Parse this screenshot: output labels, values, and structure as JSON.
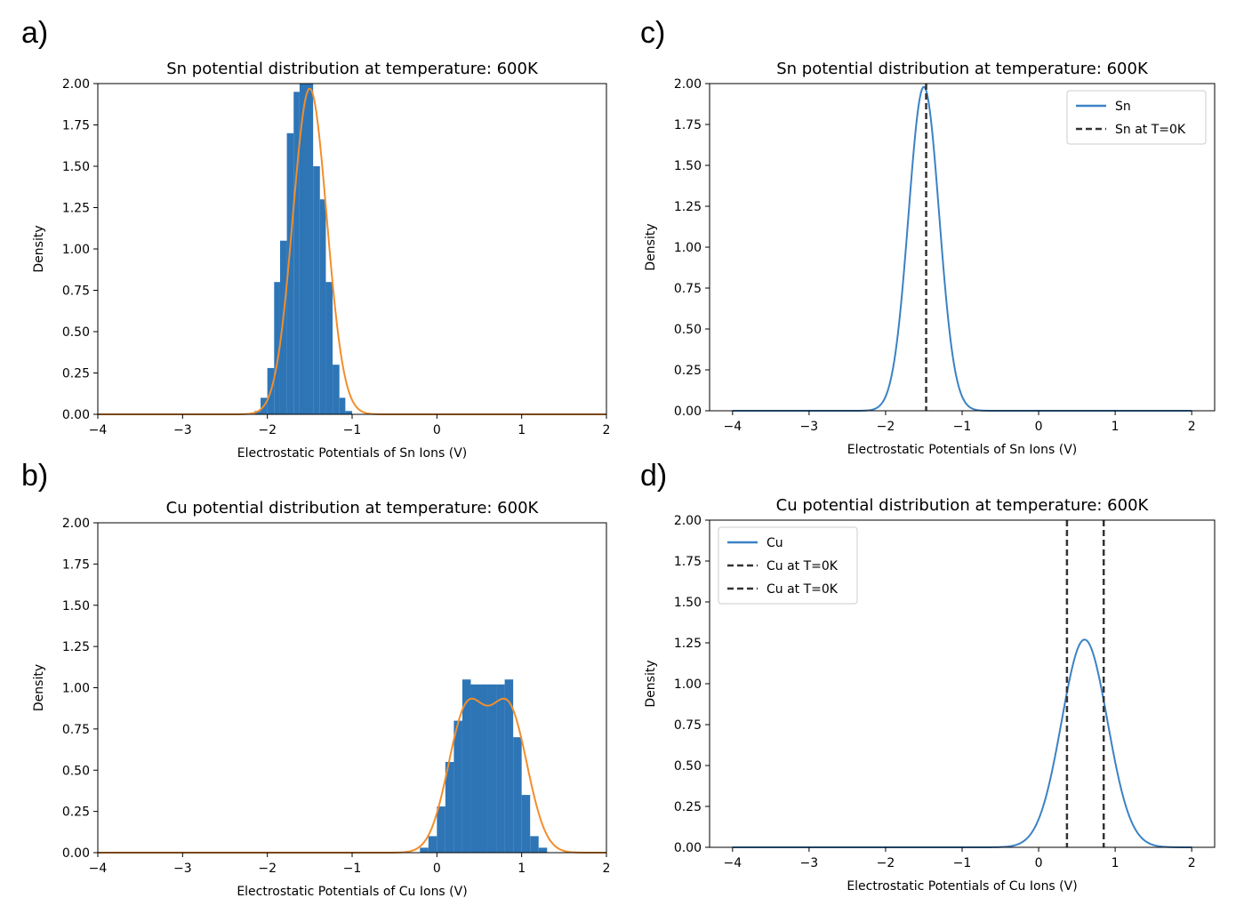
{
  "panels": [
    {
      "letter": "a)"
    },
    {
      "letter": "c)"
    },
    {
      "letter": "b)"
    },
    {
      "letter": "d)"
    }
  ],
  "chart_data": [
    {
      "id": "a",
      "type": "histogram",
      "title": "Sn potential distribution at temperature: 600K",
      "xlabel": "Electrostatic Potentials of Sn Ions (V)",
      "ylabel": "Density",
      "xlim": [
        -4,
        2
      ],
      "ylim": [
        0,
        2.0
      ],
      "xticks": [
        "−4",
        "−3",
        "−2",
        "−1",
        "0",
        "1",
        "2"
      ],
      "yticks": [
        "0.00",
        "0.25",
        "0.50",
        "0.75",
        "1.00",
        "1.25",
        "1.50",
        "1.75",
        "2.00"
      ],
      "bar_color": "#2e75b6",
      "curve_color": "#f28e2b",
      "bars": {
        "edges": [
          -2.15,
          -2.08,
          -2.0,
          -1.92,
          -1.85,
          -1.77,
          -1.69,
          -1.62,
          -1.54,
          -1.46,
          -1.38,
          -1.31,
          -1.23,
          -1.15,
          -1.08,
          -1.0
        ],
        "values": [
          0.02,
          0.1,
          0.28,
          0.8,
          1.05,
          1.7,
          1.95,
          2.05,
          2.05,
          1.5,
          1.3,
          0.8,
          0.3,
          0.1,
          0.02
        ]
      },
      "curve": {
        "type": "gaussian",
        "mean": -1.5,
        "sd": 0.2,
        "peak": 1.97
      }
    },
    {
      "id": "c",
      "type": "line",
      "title": "Sn potential distribution at temperature: 600K",
      "xlabel": "Electrostatic Potentials of Sn Ions (V)",
      "ylabel": "Density",
      "xlim": [
        -4,
        2
      ],
      "ylim": [
        0,
        2.0
      ],
      "xticks": [
        "−4",
        "−3",
        "−2",
        "−1",
        "0",
        "1",
        "2"
      ],
      "yticks": [
        "0.00",
        "0.25",
        "0.50",
        "0.75",
        "1.00",
        "1.25",
        "1.50",
        "1.75",
        "2.00"
      ],
      "curve_color": "#3b82c4",
      "curve": {
        "type": "gaussian",
        "mean": -1.5,
        "sd": 0.2,
        "peak": 1.98
      },
      "vlines": [
        -1.47
      ],
      "legend_position": "top-right",
      "legend": [
        {
          "label": "Sn",
          "style": "solid"
        },
        {
          "label": "Sn at T=0K",
          "style": "dashed"
        }
      ]
    },
    {
      "id": "b",
      "type": "histogram",
      "title": "Cu potential distribution at temperature: 600K",
      "xlabel": "Electrostatic Potentials of Cu Ions (V)",
      "ylabel": "Density",
      "xlim": [
        -4,
        2
      ],
      "ylim": [
        0,
        2.0
      ],
      "xticks": [
        "−4",
        "−3",
        "−2",
        "−1",
        "0",
        "1",
        "2"
      ],
      "yticks": [
        "0.00",
        "0.25",
        "0.50",
        "0.75",
        "1.00",
        "1.25",
        "1.50",
        "1.75",
        "2.00"
      ],
      "bar_color": "#2e75b6",
      "curve_color": "#f28e2b",
      "bars": {
        "edges": [
          -0.2,
          -0.1,
          0.0,
          0.1,
          0.2,
          0.3,
          0.4,
          0.5,
          0.6,
          0.7,
          0.8,
          0.9,
          1.0,
          1.1,
          1.2,
          1.3
        ],
        "values": [
          0.03,
          0.1,
          0.28,
          0.55,
          0.8,
          1.05,
          1.02,
          1.02,
          1.02,
          1.02,
          1.05,
          0.7,
          0.35,
          0.1,
          0.03
        ]
      },
      "curve": {
        "type": "bimodal",
        "components": [
          [
            0.35,
            0.22,
            0.85
          ],
          [
            0.85,
            0.22,
            0.85
          ]
        ]
      }
    },
    {
      "id": "d",
      "type": "line",
      "title": "Cu potential distribution at temperature: 600K",
      "xlabel": "Electrostatic Potentials of Cu Ions (V)",
      "ylabel": "Density",
      "xlim": [
        -4,
        2
      ],
      "ylim": [
        0,
        2.0
      ],
      "xticks": [
        "−4",
        "−3",
        "−2",
        "−1",
        "0",
        "1",
        "2"
      ],
      "yticks": [
        "0.00",
        "0.25",
        "0.50",
        "0.75",
        "1.00",
        "1.25",
        "1.50",
        "1.75",
        "2.00"
      ],
      "curve_color": "#3b82c4",
      "curve": {
        "type": "gaussian",
        "mean": 0.6,
        "sd": 0.3,
        "peak": 1.27
      },
      "vlines": [
        0.37,
        0.85
      ],
      "legend_position": "top-left",
      "legend": [
        {
          "label": "Cu",
          "style": "solid"
        },
        {
          "label": "Cu at T=0K",
          "style": "dashed"
        },
        {
          "label": "Cu at T=0K",
          "style": "dashed"
        }
      ]
    }
  ]
}
